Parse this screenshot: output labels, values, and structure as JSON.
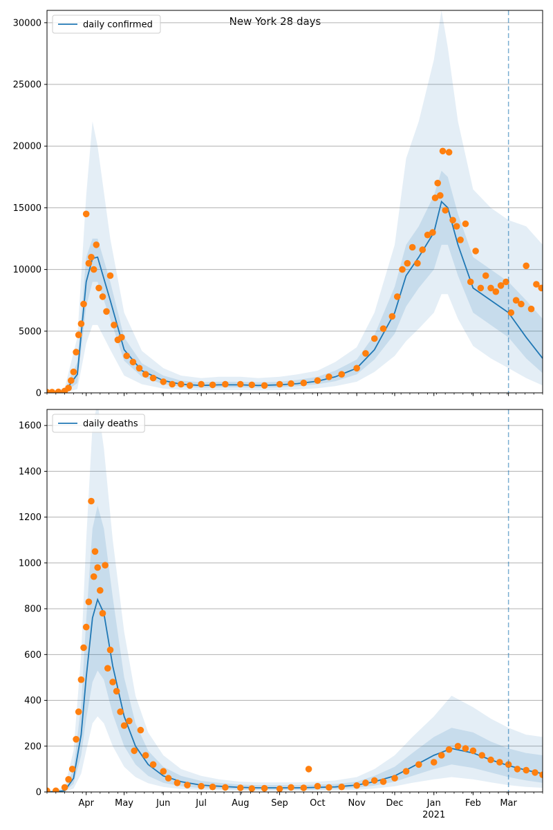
{
  "figure": {
    "title": "New York 28 days",
    "colors": {
      "line": "#1f77b4",
      "points": "#ff7f0e",
      "band": "#1f77b4",
      "grid": "#b0b0b0",
      "forecast_line": "#1f77b4"
    }
  },
  "chart_data": [
    {
      "type": "line",
      "name": "confirmed",
      "legend": [
        "daily confirmed"
      ],
      "legend_position": "top-left",
      "grid": "horizontal",
      "xlim": [
        "2020-03-01",
        "2021-03-28"
      ],
      "ylim": [
        0,
        31000
      ],
      "yticks": [
        0,
        5000,
        10000,
        15000,
        20000,
        25000,
        30000
      ],
      "forecast_start": "2021-03-01",
      "x": [
        "2020-03-01",
        "2020-03-15",
        "2020-03-25",
        "2020-04-01",
        "2020-04-06",
        "2020-04-10",
        "2020-04-20",
        "2020-05-01",
        "2020-05-15",
        "2020-06-01",
        "2020-06-15",
        "2020-07-01",
        "2020-07-15",
        "2020-08-01",
        "2020-08-15",
        "2020-09-01",
        "2020-09-15",
        "2020-10-01",
        "2020-10-15",
        "2020-11-01",
        "2020-11-15",
        "2020-12-01",
        "2020-12-10",
        "2020-12-20",
        "2021-01-01",
        "2021-01-07",
        "2021-01-12",
        "2021-01-20",
        "2021-02-01",
        "2021-02-15",
        "2021-03-01",
        "2021-03-15",
        "2021-03-28"
      ],
      "daily_confirmed": [
        0,
        100,
        1500,
        9000,
        10900,
        11000,
        7500,
        3500,
        1800,
        1000,
        700,
        600,
        650,
        650,
        600,
        650,
        750,
        950,
        1300,
        2000,
        3500,
        6500,
        9500,
        11000,
        13000,
        15500,
        15000,
        12000,
        8500,
        7500,
        6500,
        4500,
        2800
      ],
      "band_inner_upper": [
        0,
        200,
        2500,
        11000,
        12500,
        12500,
        9000,
        4500,
        2400,
        1400,
        1000,
        850,
        900,
        900,
        850,
        900,
        1050,
        1300,
        1800,
        2700,
        4700,
        8600,
        12000,
        13500,
        16000,
        18000,
        17500,
        14500,
        11000,
        10000,
        9000,
        7500,
        6000
      ],
      "band_inner_lower": [
        0,
        50,
        800,
        7000,
        9000,
        9000,
        6000,
        2600,
        1300,
        700,
        500,
        420,
        450,
        450,
        420,
        450,
        550,
        700,
        950,
        1500,
        2700,
        4800,
        7000,
        8500,
        10000,
        12000,
        12000,
        9500,
        6500,
        5500,
        4500,
        2800,
        1600
      ],
      "band_outer_upper": [
        0,
        400,
        4500,
        16000,
        22000,
        20000,
        12500,
        6500,
        3400,
        2000,
        1400,
        1200,
        1300,
        1300,
        1200,
        1300,
        1500,
        1800,
        2500,
        3700,
        6500,
        12000,
        19000,
        22000,
        27000,
        31000,
        28000,
        22000,
        16500,
        15000,
        14000,
        13500,
        12000
      ],
      "band_outer_lower": [
        0,
        20,
        300,
        4000,
        5500,
        5500,
        3500,
        1400,
        700,
        350,
        250,
        200,
        220,
        220,
        200,
        220,
        280,
        380,
        550,
        900,
        1700,
        3000,
        4200,
        5200,
        6500,
        8000,
        8000,
        6000,
        3800,
        2800,
        2000,
        1200,
        600
      ],
      "observed_x": [
        "2020-03-01",
        "2020-03-05",
        "2020-03-10",
        "2020-03-15",
        "2020-03-18",
        "2020-03-20",
        "2020-03-22",
        "2020-03-24",
        "2020-03-26",
        "2020-03-28",
        "2020-03-30",
        "2020-04-01",
        "2020-04-03",
        "2020-04-05",
        "2020-04-07",
        "2020-04-09",
        "2020-04-11",
        "2020-04-14",
        "2020-04-17",
        "2020-04-20",
        "2020-04-23",
        "2020-04-26",
        "2020-04-29",
        "2020-05-03",
        "2020-05-08",
        "2020-05-13",
        "2020-05-18",
        "2020-05-24",
        "2020-06-01",
        "2020-06-08",
        "2020-06-15",
        "2020-06-22",
        "2020-07-01",
        "2020-07-10",
        "2020-07-20",
        "2020-08-01",
        "2020-08-10",
        "2020-08-20",
        "2020-09-01",
        "2020-09-10",
        "2020-09-20",
        "2020-10-01",
        "2020-10-10",
        "2020-10-20",
        "2020-11-01",
        "2020-11-08",
        "2020-11-15",
        "2020-11-22",
        "2020-11-29",
        "2020-12-03",
        "2020-12-07",
        "2020-12-11",
        "2020-12-15",
        "2020-12-19",
        "2020-12-23",
        "2020-12-27",
        "2020-12-31",
        "2021-01-02",
        "2021-01-04",
        "2021-01-06",
        "2021-01-08",
        "2021-01-10",
        "2021-01-13",
        "2021-01-16",
        "2021-01-19",
        "2021-01-22",
        "2021-01-26",
        "2021-01-30",
        "2021-02-03",
        "2021-02-07",
        "2021-02-11",
        "2021-02-15",
        "2021-02-19",
        "2021-02-23",
        "2021-02-27",
        "2021-03-03",
        "2021-03-07",
        "2021-03-11",
        "2021-03-15",
        "2021-03-19",
        "2021-03-23",
        "2021-03-27"
      ],
      "observed_y": [
        50,
        60,
        80,
        150,
        400,
        1000,
        1700,
        3300,
        4700,
        5600,
        7200,
        14500,
        10500,
        11000,
        10000,
        12000,
        8500,
        7800,
        6600,
        9500,
        5500,
        4300,
        4500,
        3000,
        2500,
        2000,
        1500,
        1200,
        900,
        700,
        700,
        600,
        700,
        650,
        700,
        700,
        650,
        600,
        700,
        750,
        800,
        1000,
        1300,
        1500,
        2000,
        3200,
        4400,
        5200,
        6200,
        7800,
        10000,
        10500,
        11800,
        10500,
        11600,
        12800,
        13000,
        15800,
        17000,
        16000,
        19600,
        14800,
        19500,
        14000,
        13500,
        12400,
        13700,
        9000,
        11500,
        8500,
        9500,
        8500,
        8200,
        8700,
        9000,
        6500,
        7500,
        7200,
        10300,
        6800,
        8800,
        8500
      ]
    },
    {
      "type": "line",
      "name": "deaths",
      "legend": [
        "daily deaths"
      ],
      "legend_position": "top-left",
      "grid": "horizontal",
      "xlim": [
        "2020-03-01",
        "2021-03-28"
      ],
      "ylim": [
        0,
        1670
      ],
      "yticks": [
        0,
        200,
        400,
        600,
        800,
        1000,
        1200,
        1400,
        1600
      ],
      "forecast_start": "2021-03-01",
      "xtick_labels": [
        "Apr",
        "May",
        "Jun",
        "Jul",
        "Aug",
        "Sep",
        "Oct",
        "Nov",
        "Dec",
        "Jan",
        "Feb",
        "Mar"
      ],
      "xtick_dates": [
        "2020-04-01",
        "2020-05-01",
        "2020-06-01",
        "2020-07-01",
        "2020-08-01",
        "2020-09-01",
        "2020-10-01",
        "2020-11-01",
        "2020-12-01",
        "2021-01-01",
        "2021-02-01",
        "2021-03-01"
      ],
      "year_label": "2021",
      "x": [
        "2020-03-01",
        "2020-03-15",
        "2020-03-22",
        "2020-03-28",
        "2020-04-01",
        "2020-04-06",
        "2020-04-10",
        "2020-04-15",
        "2020-04-22",
        "2020-05-01",
        "2020-05-10",
        "2020-05-20",
        "2020-06-01",
        "2020-06-15",
        "2020-07-01",
        "2020-07-15",
        "2020-08-01",
        "2020-08-15",
        "2020-09-01",
        "2020-09-15",
        "2020-10-01",
        "2020-10-15",
        "2020-11-01",
        "2020-11-15",
        "2020-12-01",
        "2020-12-15",
        "2021-01-01",
        "2021-01-15",
        "2021-02-01",
        "2021-02-15",
        "2021-03-01",
        "2021-03-15",
        "2021-03-28"
      ],
      "daily_deaths": [
        0,
        5,
        60,
        250,
        500,
        760,
        840,
        780,
        550,
        330,
        200,
        120,
        70,
        45,
        30,
        25,
        20,
        18,
        18,
        18,
        20,
        22,
        30,
        45,
        70,
        110,
        160,
        190,
        170,
        140,
        115,
        95,
        80
      ],
      "band_inner_upper": [
        0,
        10,
        100,
        380,
        750,
        1150,
        1250,
        1150,
        850,
        500,
        300,
        180,
        110,
        70,
        48,
        40,
        32,
        30,
        30,
        30,
        32,
        35,
        45,
        70,
        110,
        170,
        240,
        280,
        260,
        220,
        190,
        170,
        160
      ],
      "band_inner_lower": [
        0,
        2,
        35,
        160,
        320,
        480,
        530,
        490,
        340,
        200,
        120,
        70,
        40,
        25,
        17,
        14,
        11,
        10,
        10,
        10,
        11,
        13,
        18,
        28,
        45,
        70,
        100,
        120,
        105,
        85,
        65,
        50,
        40
      ],
      "band_outer_upper": [
        0,
        20,
        180,
        600,
        1100,
        1600,
        1700,
        1500,
        1100,
        700,
        420,
        260,
        160,
        100,
        70,
        55,
        45,
        42,
        42,
        42,
        45,
        50,
        65,
        100,
        160,
        240,
        330,
        420,
        370,
        320,
        280,
        250,
        240
      ],
      "band_outer_lower": [
        0,
        1,
        15,
        80,
        180,
        300,
        330,
        300,
        200,
        110,
        65,
        38,
        22,
        13,
        9,
        7,
        6,
        5,
        5,
        5,
        6,
        7,
        9,
        15,
        25,
        40,
        55,
        65,
        55,
        42,
        30,
        22,
        18
      ],
      "observed_x": [
        "2020-03-01",
        "2020-03-08",
        "2020-03-15",
        "2020-03-18",
        "2020-03-21",
        "2020-03-24",
        "2020-03-26",
        "2020-03-28",
        "2020-03-30",
        "2020-04-01",
        "2020-04-03",
        "2020-04-05",
        "2020-04-07",
        "2020-04-08",
        "2020-04-10",
        "2020-04-12",
        "2020-04-14",
        "2020-04-16",
        "2020-04-18",
        "2020-04-20",
        "2020-04-22",
        "2020-04-25",
        "2020-04-28",
        "2020-05-01",
        "2020-05-05",
        "2020-05-09",
        "2020-05-14",
        "2020-05-18",
        "2020-05-24",
        "2020-06-01",
        "2020-06-05",
        "2020-06-12",
        "2020-06-20",
        "2020-07-01",
        "2020-07-10",
        "2020-07-20",
        "2020-08-01",
        "2020-08-10",
        "2020-08-20",
        "2020-09-01",
        "2020-09-10",
        "2020-09-20",
        "2020-09-24",
        "2020-10-01",
        "2020-10-10",
        "2020-10-20",
        "2020-11-01",
        "2020-11-08",
        "2020-11-15",
        "2020-11-22",
        "2020-12-01",
        "2020-12-10",
        "2020-12-20",
        "2021-01-01",
        "2021-01-07",
        "2021-01-13",
        "2021-01-20",
        "2021-01-26",
        "2021-02-01",
        "2021-02-08",
        "2021-02-15",
        "2021-02-22",
        "2021-03-01",
        "2021-03-08",
        "2021-03-15",
        "2021-03-22",
        "2021-03-28"
      ],
      "observed_y": [
        5,
        5,
        20,
        55,
        100,
        230,
        350,
        490,
        630,
        720,
        830,
        1270,
        940,
        1050,
        980,
        880,
        780,
        990,
        540,
        620,
        480,
        440,
        350,
        290,
        310,
        180,
        270,
        160,
        120,
        90,
        60,
        40,
        30,
        25,
        22,
        20,
        18,
        15,
        16,
        14,
        20,
        18,
        100,
        25,
        20,
        22,
        28,
        40,
        50,
        45,
        60,
        90,
        120,
        130,
        160,
        185,
        200,
        190,
        180,
        160,
        140,
        130,
        120,
        100,
        95,
        85,
        75
      ]
    }
  ]
}
